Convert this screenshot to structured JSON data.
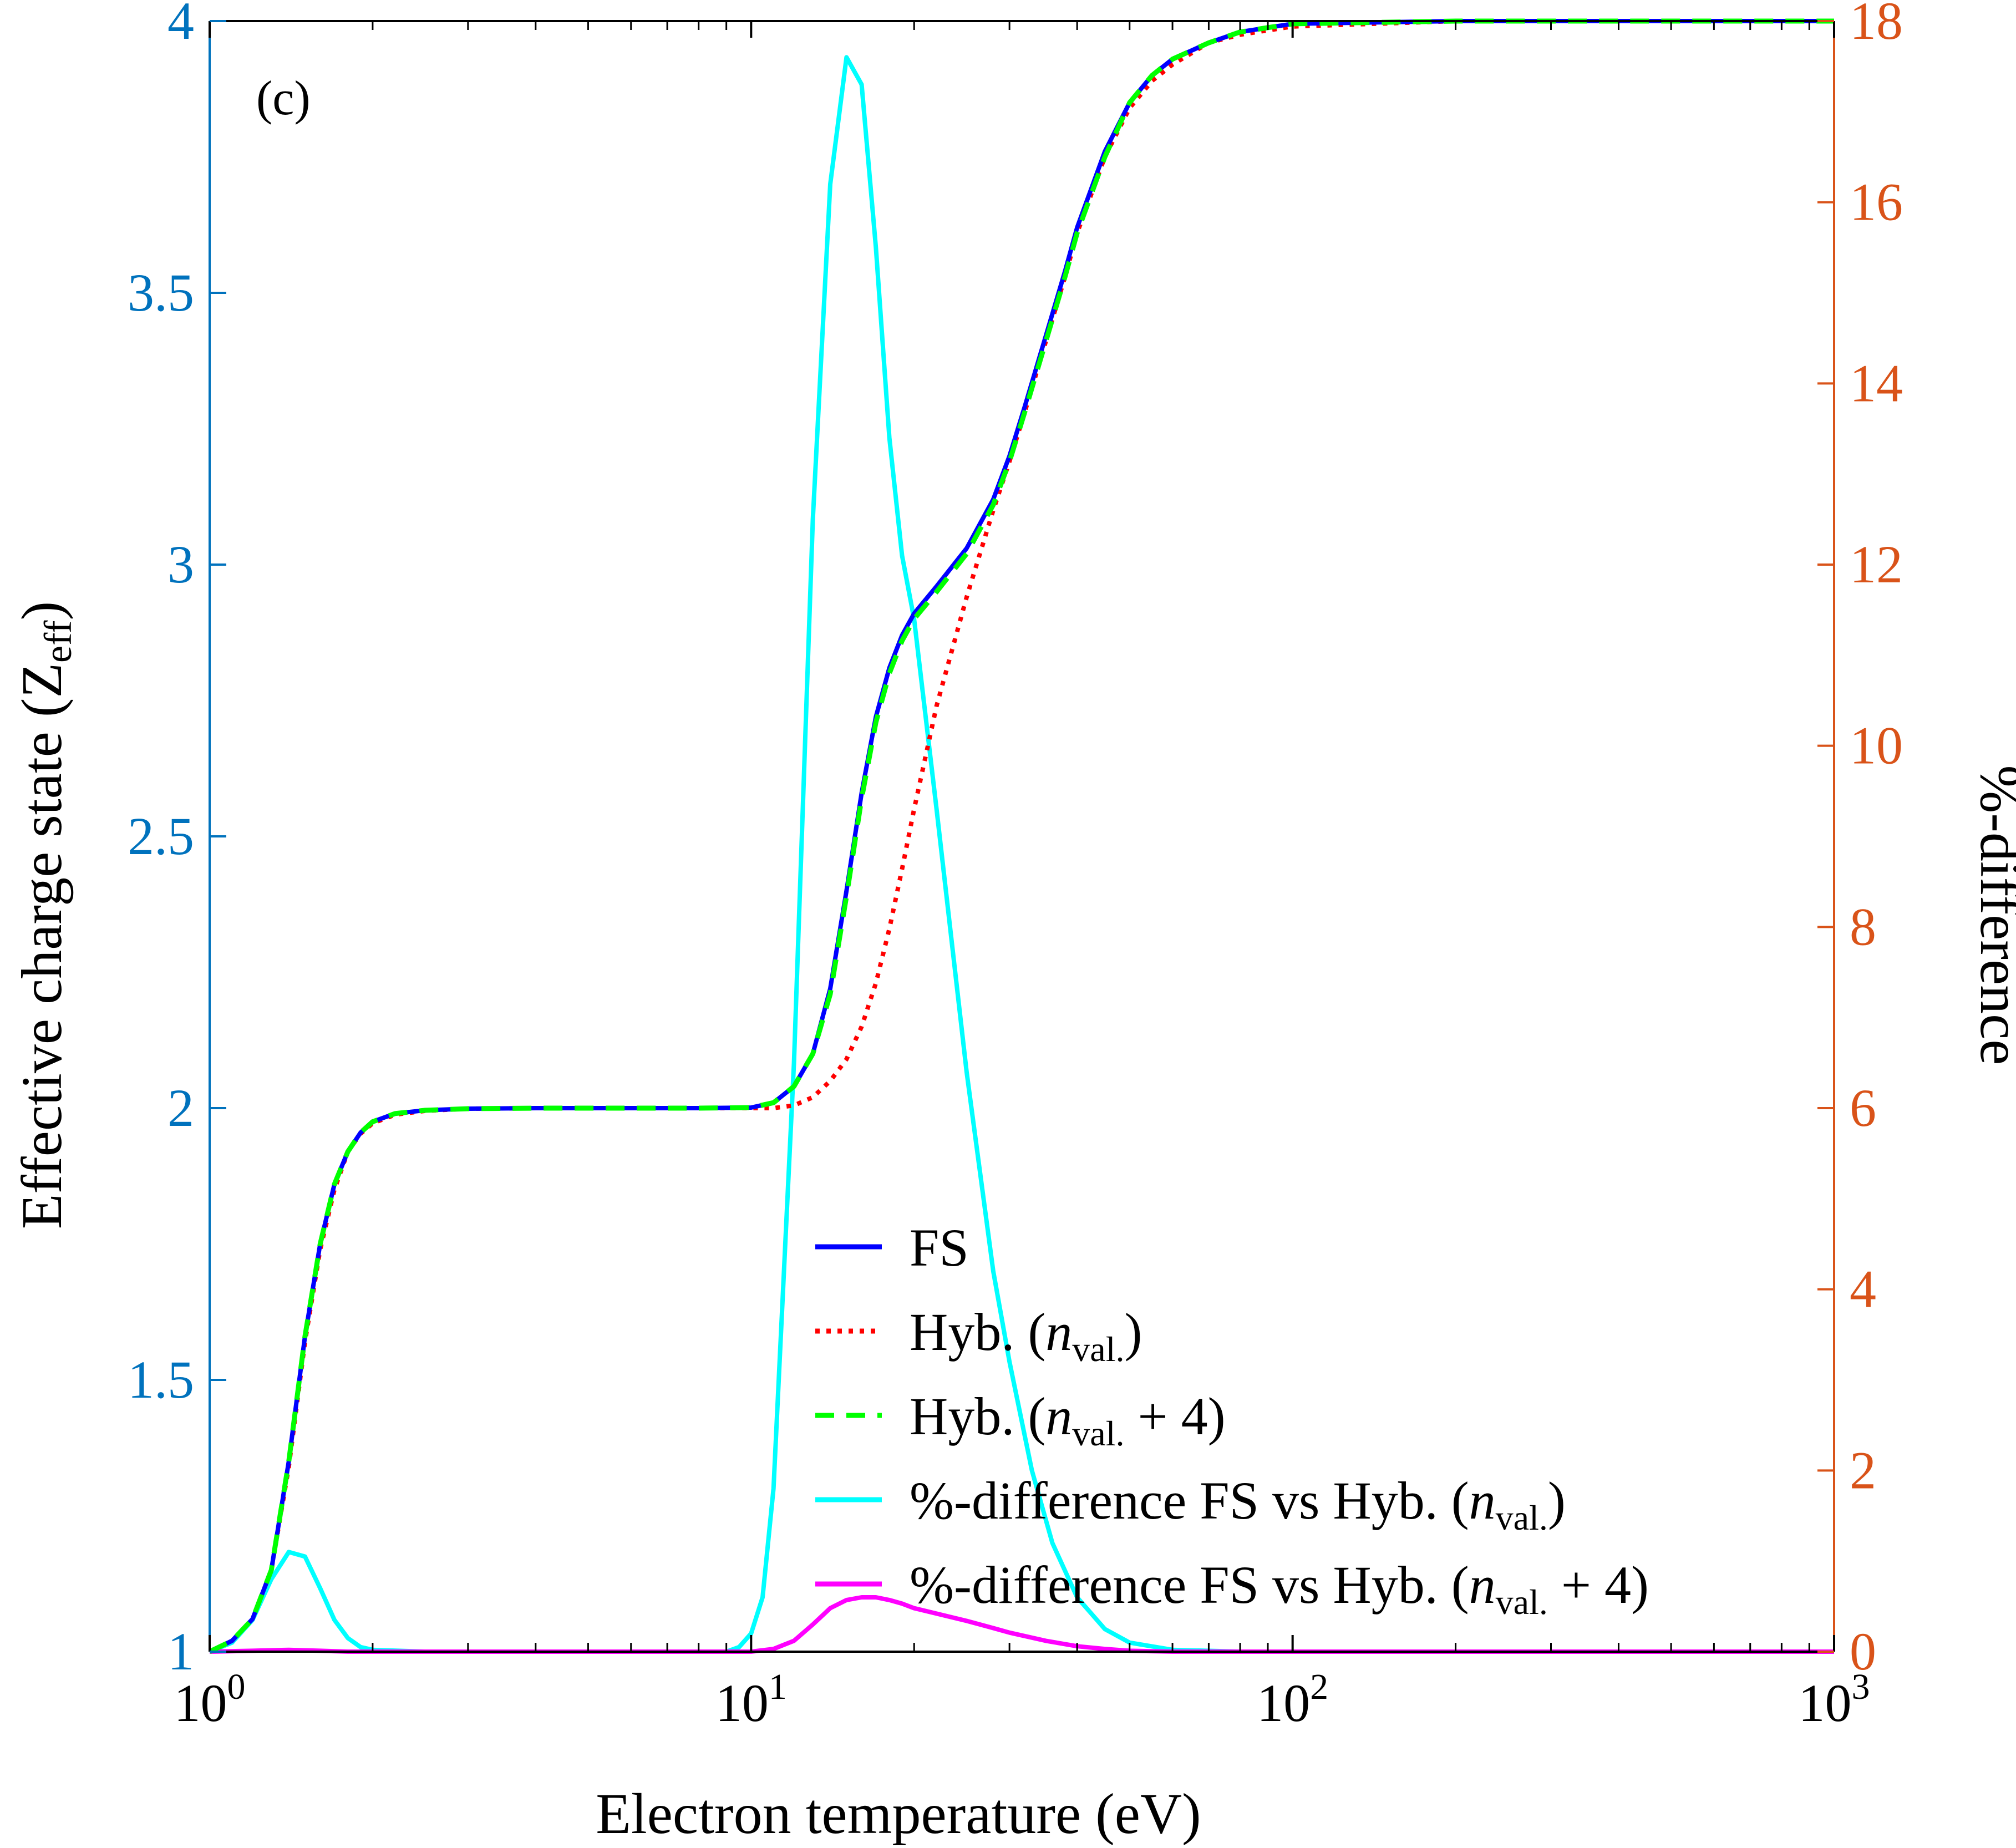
{
  "colors": {
    "left_axis": "#0072BD",
    "right_axis": "#D95319",
    "axis_black": "#000000",
    "fs": "#0000FF",
    "hyb_nval": "#FF0000",
    "hyb_nval4": "#00FF00",
    "diff_nval": "#00FFFF",
    "diff_nval4": "#FF00FF"
  },
  "chart_data": {
    "type": "line",
    "panel_label": "(c)",
    "xlabel": "Electron temperature (eV)",
    "ylabel_left": {
      "main": "Effective charge state (Z",
      "sub": "eff",
      "close": ")"
    },
    "ylabel_right": "%-difference",
    "xscale": "log",
    "xlim": [
      1,
      1000
    ],
    "ylim_left": [
      1,
      4
    ],
    "ylim_right": [
      0,
      18
    ],
    "x_ticks": [
      {
        "base": "10",
        "exp": "0",
        "value": 1
      },
      {
        "base": "10",
        "exp": "1",
        "value": 10
      },
      {
        "base": "10",
        "exp": "2",
        "value": 100
      },
      {
        "base": "10",
        "exp": "3",
        "value": 1000
      }
    ],
    "y_left_ticks": [
      "1",
      "1.5",
      "2",
      "2.5",
      "3",
      "3.5",
      "4"
    ],
    "y_right_ticks": [
      "0",
      "2",
      "4",
      "6",
      "8",
      "10",
      "12",
      "14",
      "16",
      "18"
    ],
    "legend": {
      "position": "lower-center",
      "entries": [
        {
          "key": "fs",
          "label": "FS"
        },
        {
          "key": "hyb_nval",
          "label": "Hyb. (n",
          "sub": "val.",
          "suffix": ")"
        },
        {
          "key": "hyb_nval4",
          "label": "Hyb. (n",
          "sub": "val.",
          "suffix": " + 4)"
        },
        {
          "key": "diff_nval",
          "label": "%-difference FS vs Hyb. (n",
          "sub": "val.",
          "suffix": ")"
        },
        {
          "key": "diff_nval4",
          "label": "%-difference FS vs Hyb. (n",
          "sub": "val.",
          "suffix": " + 4)"
        }
      ]
    },
    "series": [
      {
        "name": "FS",
        "key": "fs",
        "axis": "left",
        "style": "solid",
        "x": [
          1.0,
          1.1,
          1.2,
          1.3,
          1.4,
          1.5,
          1.6,
          1.7,
          1.8,
          1.9,
          2.0,
          2.2,
          2.5,
          3.0,
          4.0,
          6.0,
          8.0,
          10.0,
          11.0,
          12.0,
          13.0,
          14.0,
          15.0,
          16.0,
          17.0,
          18.0,
          19.0,
          20.0,
          22.0,
          25.0,
          28.0,
          30.0,
          32.0,
          35.0,
          38.0,
          40.0,
          45.0,
          50.0,
          55.0,
          60.0,
          70.0,
          80.0,
          100.0,
          200.0,
          1000.0
        ],
        "y": [
          1.0,
          1.02,
          1.06,
          1.15,
          1.35,
          1.58,
          1.75,
          1.86,
          1.92,
          1.955,
          1.975,
          1.99,
          1.996,
          1.999,
          2.0,
          2.0,
          2.0,
          2.001,
          2.01,
          2.04,
          2.1,
          2.22,
          2.4,
          2.58,
          2.72,
          2.81,
          2.87,
          2.91,
          2.96,
          3.03,
          3.12,
          3.2,
          3.29,
          3.42,
          3.54,
          3.62,
          3.76,
          3.85,
          3.9,
          3.93,
          3.96,
          3.98,
          3.995,
          4.0,
          4.0
        ]
      },
      {
        "name": "Hyb. (n val.)",
        "key": "hyb_nval",
        "axis": "left",
        "style": "dotted",
        "x": [
          1.0,
          1.1,
          1.2,
          1.3,
          1.4,
          1.5,
          1.6,
          1.7,
          1.8,
          1.9,
          2.0,
          2.2,
          2.5,
          3.0,
          4.0,
          6.0,
          8.0,
          10.0,
          11.0,
          12.0,
          13.0,
          14.0,
          15.0,
          16.0,
          17.0,
          18.0,
          19.0,
          20.0,
          22.0,
          25.0,
          28.0,
          30.0,
          32.0,
          35.0,
          38.0,
          40.0,
          45.0,
          50.0,
          55.0,
          60.0,
          70.0,
          80.0,
          100.0,
          200.0,
          1000.0
        ],
        "y": [
          1.0,
          1.02,
          1.06,
          1.15,
          1.34,
          1.57,
          1.74,
          1.85,
          1.92,
          1.953,
          1.972,
          1.988,
          1.995,
          1.999,
          2.0,
          2.0,
          2.0,
          2.0,
          2.0,
          2.005,
          2.02,
          2.05,
          2.09,
          2.15,
          2.23,
          2.33,
          2.44,
          2.55,
          2.74,
          2.94,
          3.1,
          3.19,
          3.28,
          3.41,
          3.53,
          3.61,
          3.75,
          3.84,
          3.89,
          3.92,
          3.96,
          3.975,
          3.99,
          4.0,
          4.0
        ]
      },
      {
        "name": "Hyb. (n val. + 4)",
        "key": "hyb_nval4",
        "axis": "left",
        "style": "dashed",
        "x": [
          1.0,
          1.1,
          1.2,
          1.3,
          1.4,
          1.5,
          1.6,
          1.7,
          1.8,
          1.9,
          2.0,
          2.2,
          2.5,
          3.0,
          4.0,
          6.0,
          8.0,
          10.0,
          11.0,
          12.0,
          13.0,
          14.0,
          15.0,
          16.0,
          17.0,
          18.0,
          19.0,
          20.0,
          22.0,
          25.0,
          28.0,
          30.0,
          32.0,
          35.0,
          38.0,
          40.0,
          45.0,
          50.0,
          55.0,
          60.0,
          70.0,
          80.0,
          100.0,
          200.0,
          1000.0
        ],
        "y": [
          1.0,
          1.02,
          1.06,
          1.15,
          1.35,
          1.58,
          1.75,
          1.86,
          1.92,
          1.955,
          1.975,
          1.99,
          1.996,
          1.999,
          2.0,
          2.0,
          2.0,
          2.001,
          2.01,
          2.04,
          2.1,
          2.21,
          2.39,
          2.57,
          2.71,
          2.8,
          2.86,
          2.9,
          2.95,
          3.02,
          3.11,
          3.19,
          3.28,
          3.41,
          3.53,
          3.61,
          3.75,
          3.85,
          3.9,
          3.93,
          3.96,
          3.98,
          3.995,
          4.0,
          4.0
        ]
      },
      {
        "name": "%-difference FS vs Hyb. (n val.)",
        "key": "diff_nval",
        "axis": "right",
        "style": "solid",
        "x": [
          1.0,
          1.1,
          1.2,
          1.3,
          1.4,
          1.5,
          1.6,
          1.7,
          1.8,
          1.9,
          2.0,
          2.5,
          3.0,
          9.0,
          9.5,
          10.0,
          10.5,
          11.0,
          12.0,
          13.0,
          14.0,
          15.0,
          16.0,
          17.0,
          18.0,
          19.0,
          20.0,
          22.0,
          25.0,
          28.0,
          30.0,
          33.0,
          36.0,
          40.0,
          45.0,
          50.0,
          60.0,
          80.0,
          100.0,
          1000.0
        ],
        "y": [
          0.0,
          0.1,
          0.35,
          0.8,
          1.1,
          1.05,
          0.7,
          0.35,
          0.15,
          0.05,
          0.02,
          0.0,
          0.0,
          0.0,
          0.05,
          0.2,
          0.6,
          1.8,
          6.5,
          12.5,
          16.2,
          17.6,
          17.3,
          15.5,
          13.4,
          12.1,
          11.4,
          9.3,
          6.4,
          4.2,
          3.2,
          2.0,
          1.2,
          0.6,
          0.25,
          0.1,
          0.02,
          0.0,
          0.0,
          0.0
        ]
      },
      {
        "name": "%-difference FS vs Hyb. (n val. + 4)",
        "key": "diff_nval4",
        "axis": "right",
        "style": "solid",
        "x": [
          1.0,
          1.2,
          1.4,
          1.6,
          1.8,
          2.0,
          5.0,
          10.0,
          11.0,
          12.0,
          13.0,
          14.0,
          15.0,
          16.0,
          17.0,
          18.0,
          19.0,
          20.0,
          22.0,
          25.0,
          28.0,
          30.0,
          35.0,
          40.0,
          45.0,
          50.0,
          60.0,
          100.0,
          1000.0
        ],
        "y": [
          0.0,
          0.01,
          0.02,
          0.01,
          0.0,
          0.0,
          0.0,
          0.0,
          0.03,
          0.12,
          0.3,
          0.48,
          0.57,
          0.6,
          0.6,
          0.57,
          0.53,
          0.48,
          0.42,
          0.34,
          0.26,
          0.21,
          0.12,
          0.06,
          0.03,
          0.01,
          0.0,
          0.0,
          0.0
        ]
      }
    ]
  }
}
